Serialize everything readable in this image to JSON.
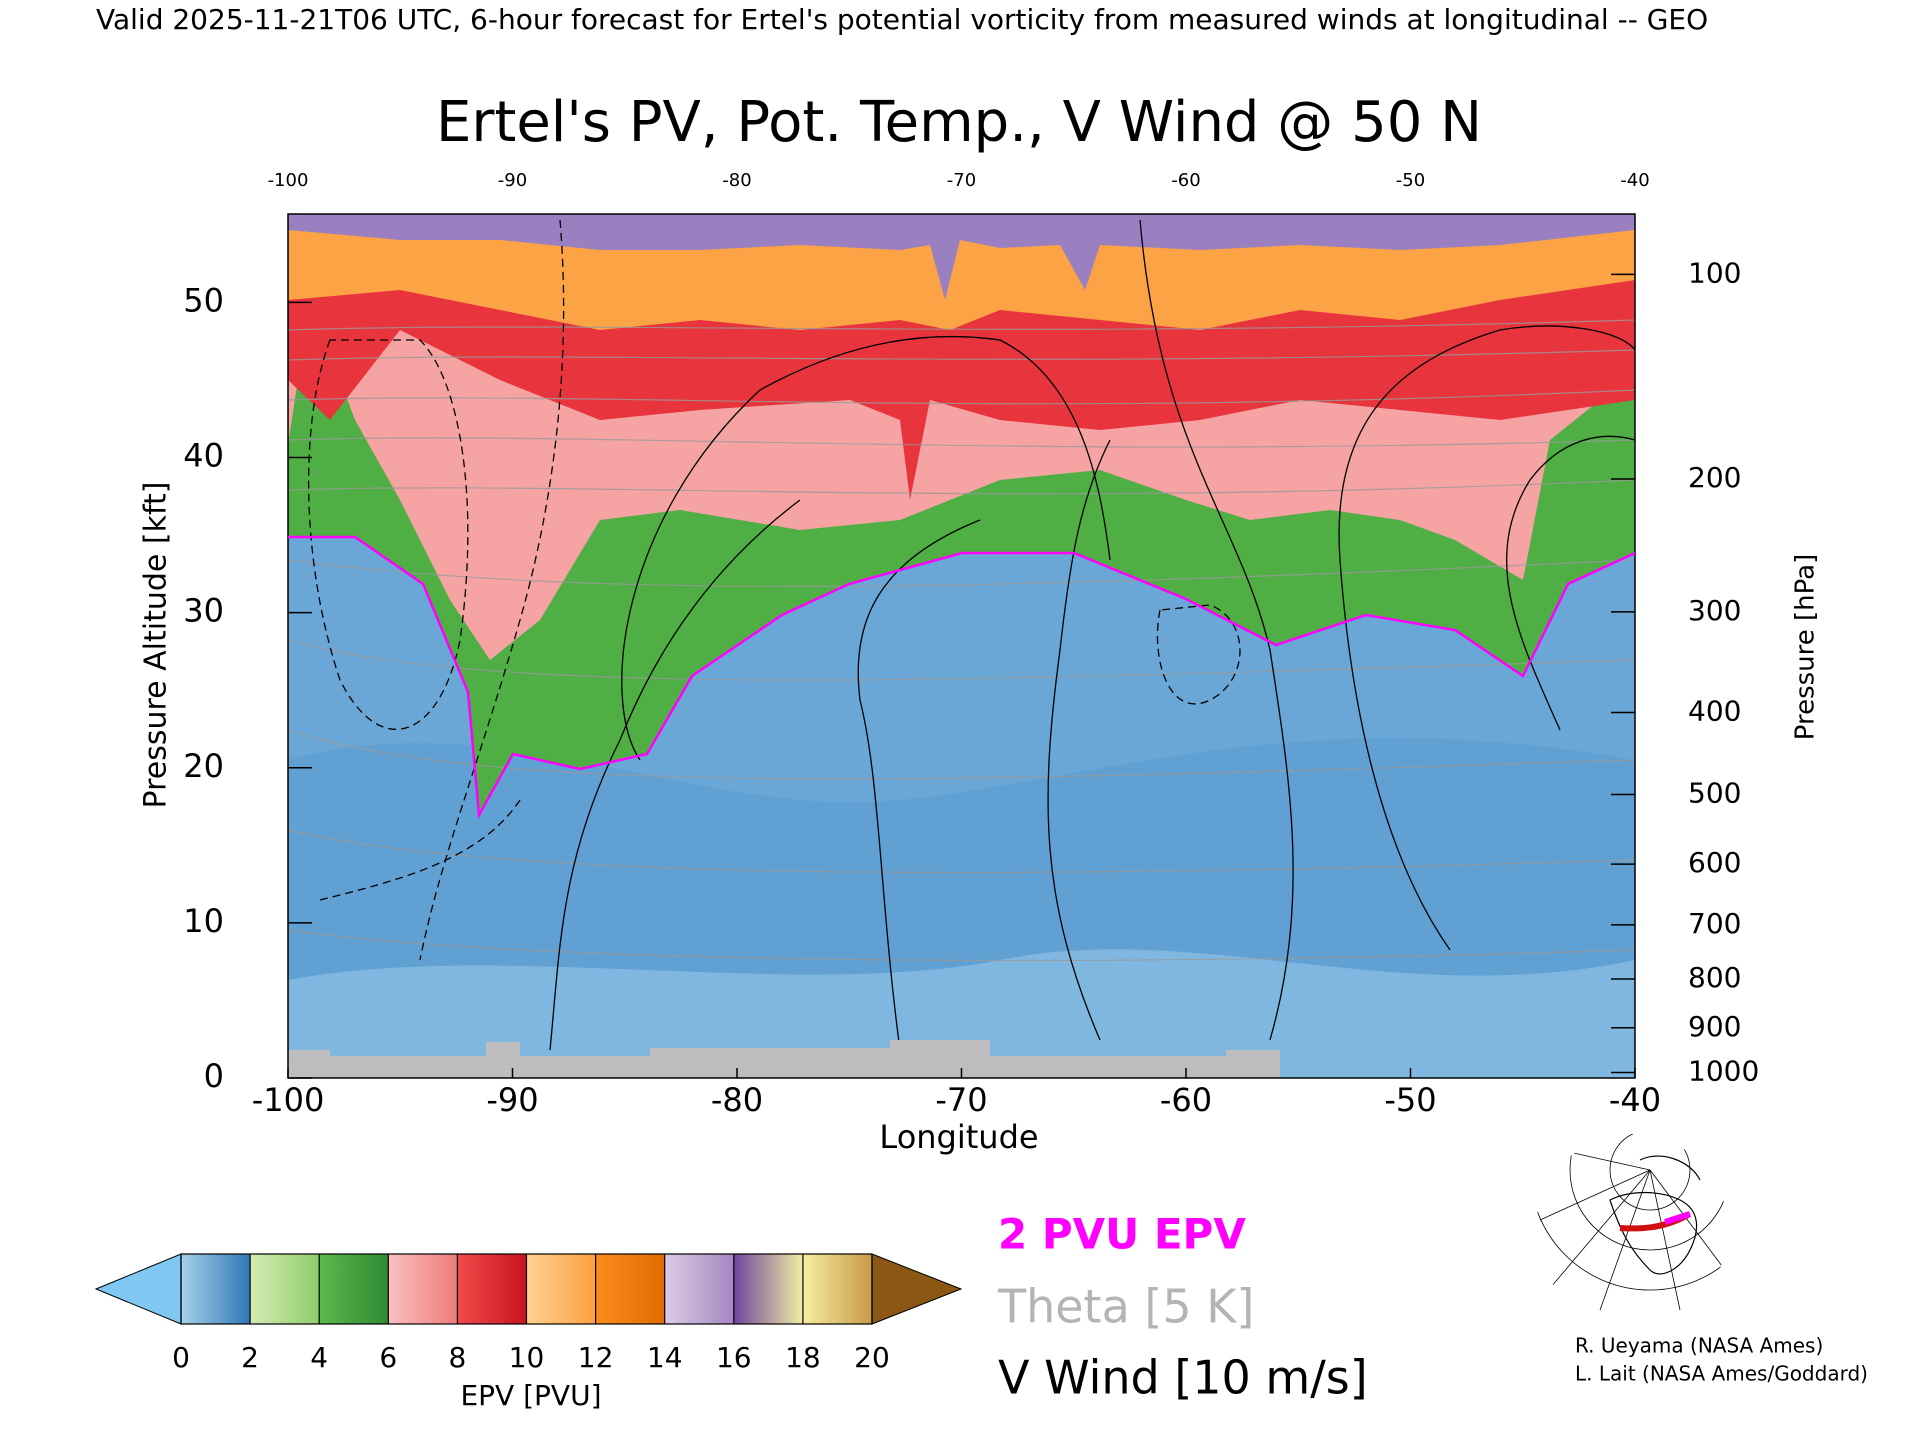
{
  "header": "Valid 2025-11-21T06 UTC, 6-hour forecast for Ertel's potential vorticity from measured winds at longitudinal -- GEO",
  "chart_data": {
    "type": "contourf",
    "title": "Ertel's PV, Pot. Temp., V Wind @ 50 N",
    "xlabel": "Longitude",
    "ylabel": "Pressure Altitude [kft]",
    "y2label": "Pressure [hPa]",
    "xlim": [
      -100,
      -40
    ],
    "xticks": [
      -100,
      -90,
      -80,
      -70,
      -60,
      -50,
      -40
    ],
    "ylim": [
      0,
      55.7
    ],
    "yticks": [
      0,
      10,
      20,
      30,
      40,
      50
    ],
    "y2lim": [
      1013,
      80
    ],
    "y2scale": "pressure_altitude",
    "y2ticks": [
      100,
      200,
      300,
      400,
      500,
      600,
      700,
      800,
      900,
      1000
    ],
    "colorbar": {
      "label": "EPV [PVU]",
      "lim": [
        0,
        20
      ],
      "ticks": [
        0,
        2,
        4,
        6,
        8,
        10,
        12,
        14,
        16,
        18,
        20
      ],
      "segments": [
        [
          "#a6d0ea",
          "#2f78b6"
        ],
        [
          "#d6ecb4",
          "#8fcd6a"
        ],
        [
          "#5fb84c",
          "#2e8a32"
        ],
        [
          "#f8c0c0",
          "#f07a7a"
        ],
        [
          "#f04a4a",
          "#c8141e"
        ],
        [
          "#fdd292",
          "#fba040"
        ],
        [
          "#fb8c1c",
          "#e06b00"
        ],
        [
          "#dccce4",
          "#a486c0"
        ],
        [
          "#6e46a0",
          "#f2eea0"
        ],
        [
          "#f6eea0",
          "#c89a48"
        ]
      ],
      "under_color": "#80c8f2",
      "over_color": "#8a5814"
    },
    "legend": [
      {
        "name": "2 PVU EPV",
        "color": "#ff00ff"
      },
      {
        "name": "Theta [5 K]",
        "color": "#b4b4b4"
      },
      {
        "name": "V Wind [10 m/s]",
        "color": "#000000"
      }
    ],
    "credits": [
      "R. Ueyama (NASA Ames)",
      "L. Lait (NASA Ames/Goddard)"
    ]
  }
}
